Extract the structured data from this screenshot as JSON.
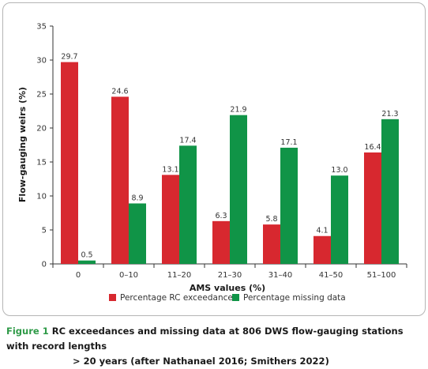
{
  "chart_data": {
    "type": "bar",
    "ylabel": "Flow-gauging weirs (%)",
    "xlabel": "AMS values (%)",
    "ylim": [
      0,
      35
    ],
    "yticks": [
      0,
      5,
      10,
      15,
      20,
      25,
      30,
      35
    ],
    "grid": false,
    "legend_position": "bottom",
    "categories": [
      "0",
      "0–10",
      "11–20",
      "21–30",
      "31–40",
      "41–50",
      "51–100"
    ],
    "series": [
      {
        "name": "Percentage RC exceedance",
        "color": "#d7282f",
        "values": [
          29.7,
          24.6,
          13.1,
          6.3,
          5.8,
          4.1,
          16.4
        ],
        "labels": [
          "29.7",
          "24.6",
          "13.1",
          "6.3",
          "5.8",
          "4.1",
          "16.4"
        ]
      },
      {
        "name": "Percentage missing data",
        "color": "#109447",
        "values": [
          0.5,
          8.9,
          17.4,
          21.9,
          17.1,
          13.0,
          21.3
        ],
        "labels": [
          "0.5",
          "8.9",
          "17.4",
          "21.9",
          "17.1",
          "13.0",
          "21.3"
        ]
      }
    ]
  },
  "caption": {
    "figure_label": "Figure 1",
    "text_line1": "RC exceedances and missing data at 806 DWS flow-gauging stations with record lengths",
    "text_line2": "> 20 years (after Nathanael 2016; Smithers 2022)"
  }
}
